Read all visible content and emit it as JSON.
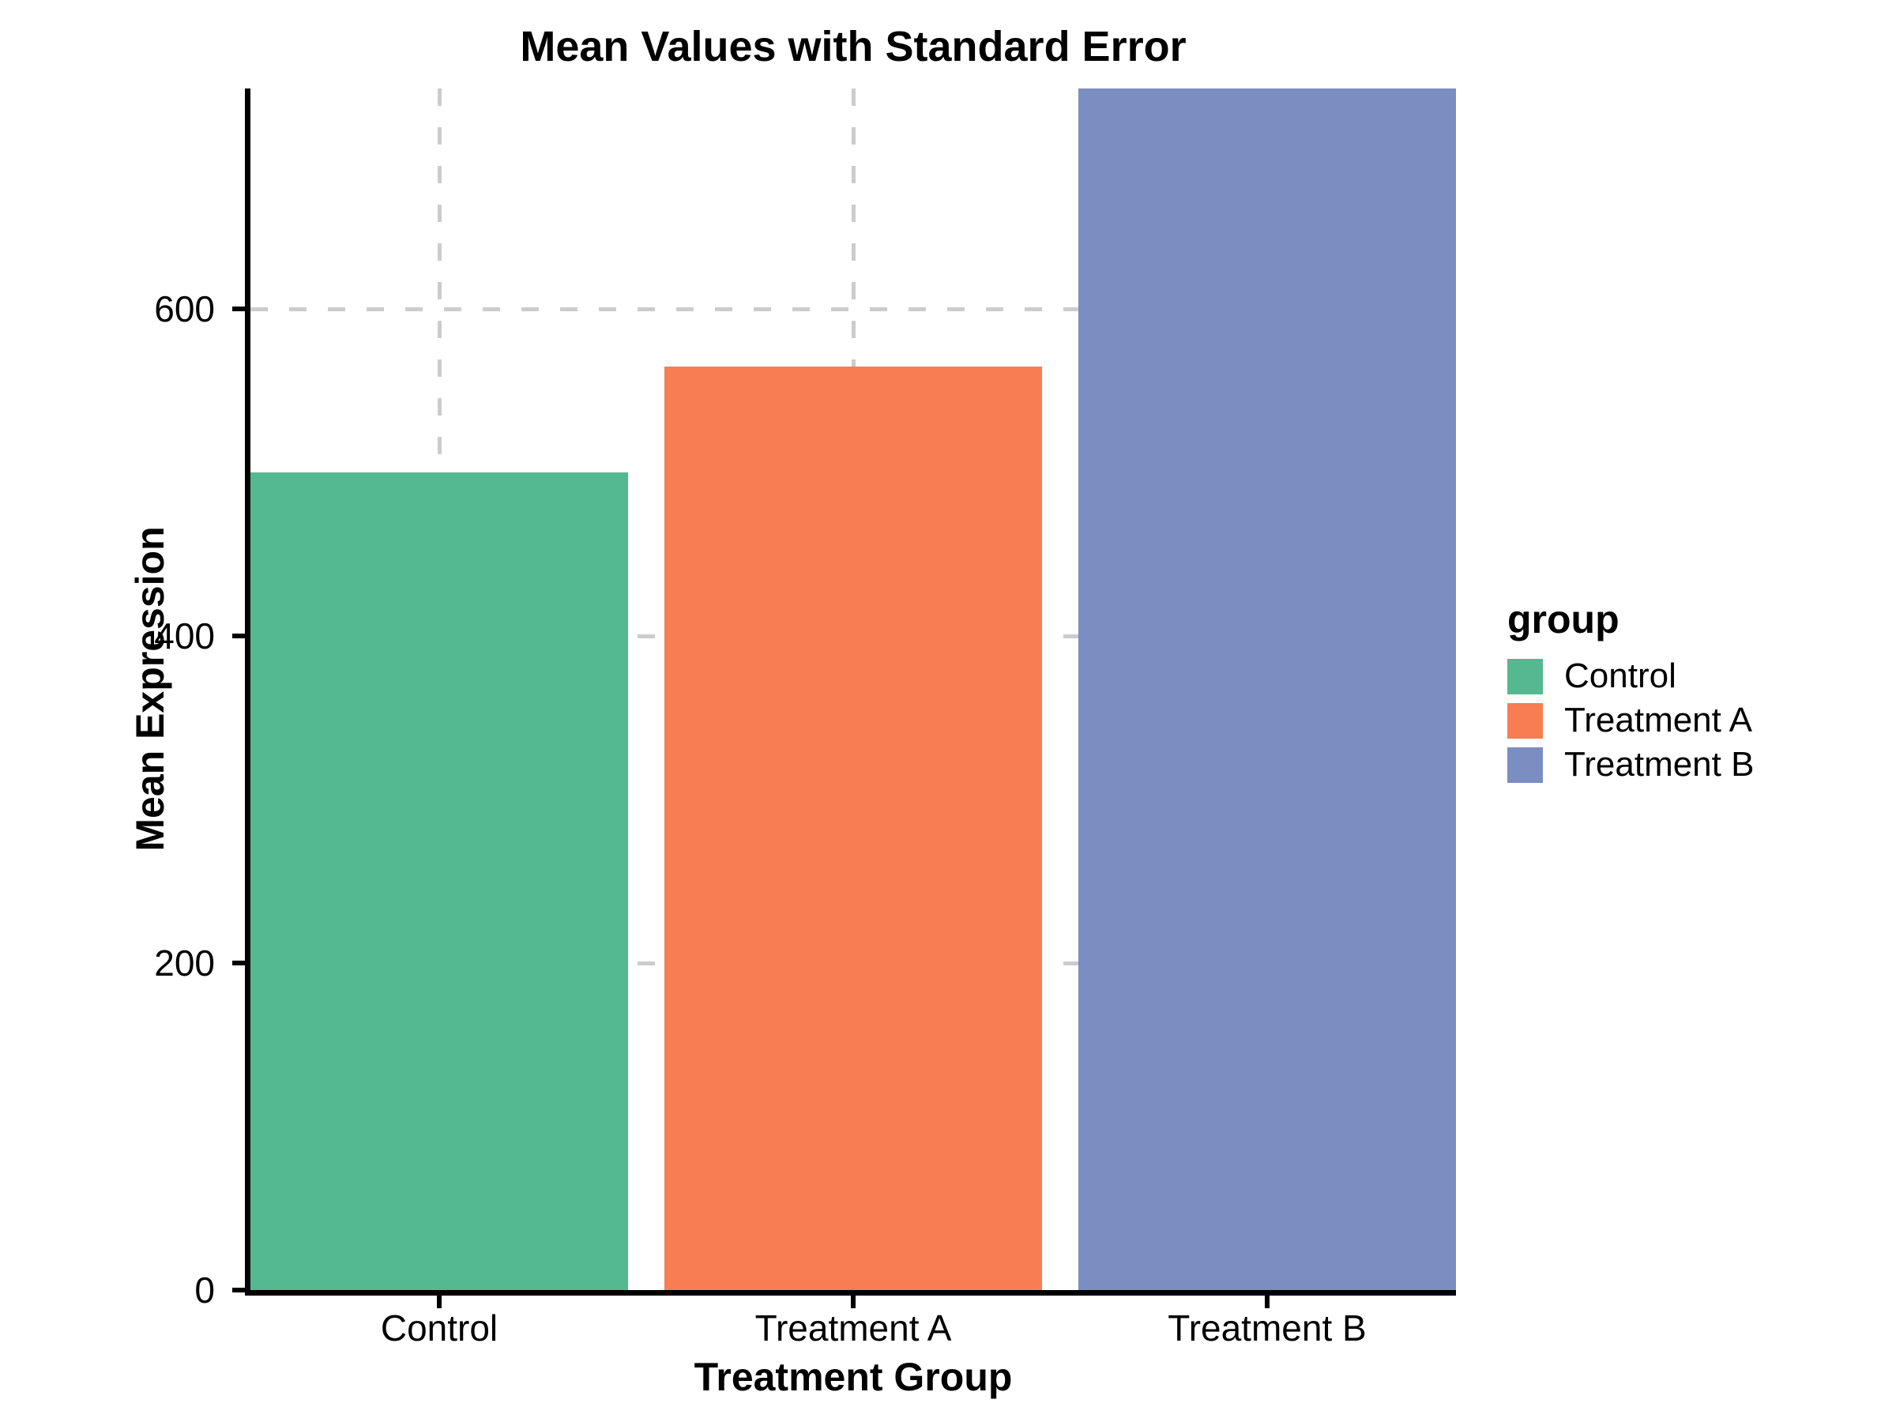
{
  "chart_data": {
    "type": "bar",
    "title": "Mean Values with Standard Error",
    "xlabel": "Treatment Group",
    "ylabel": "Mean Expression",
    "categories": [
      "Control",
      "Treatment A",
      "Treatment B"
    ],
    "values": [
      500,
      565,
      735
    ],
    "bar_colors": [
      "#54B890",
      "#F87D52",
      "#7B8EC2"
    ],
    "ylim": [
      0,
      735
    ],
    "yticks": [
      0,
      200,
      400,
      600
    ],
    "grid": {
      "style": "dashed",
      "color": "#CCCCCC",
      "horizontal_at": [
        200,
        400,
        600
      ],
      "vertical_at": "category-centers"
    },
    "axes": {
      "line_color": "#000000",
      "tick_color": "#000000",
      "text_color": "#000000"
    },
    "legend": {
      "title": "group",
      "position": "right",
      "entries": [
        {
          "label": "Control",
          "color": "#54B890"
        },
        {
          "label": "Treatment A",
          "color": "#F87D52"
        },
        {
          "label": "Treatment B",
          "color": "#7B8EC2"
        }
      ]
    }
  }
}
